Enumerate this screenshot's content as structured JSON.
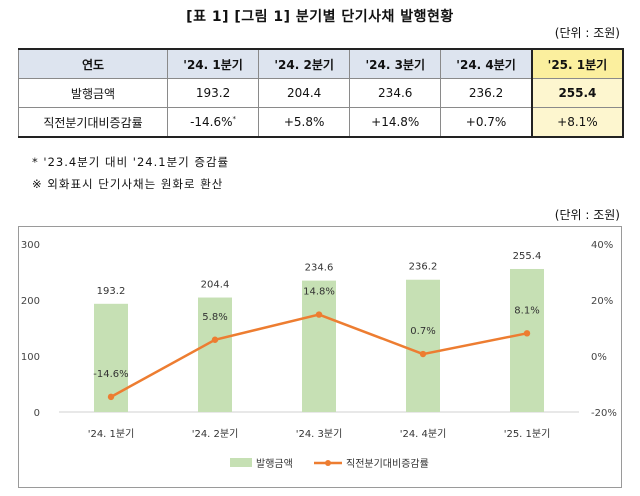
{
  "title": "[표 1] [그림 1] 분기별 단기사채 발행현황",
  "unit_label": "(단위 : 조원)",
  "table": {
    "header": [
      "연도",
      "'24. 1분기",
      "'24. 2분기",
      "'24. 3분기",
      "'24. 4분기",
      "'25. 1분기"
    ],
    "rows": [
      {
        "label": "발행금액",
        "cells": [
          "193.2",
          "204.4",
          "234.6",
          "236.2",
          "255.4"
        ]
      },
      {
        "label": "직전분기대비증감률",
        "cells": [
          "-14.6%",
          "+5.8%",
          "+14.8%",
          "+0.7%",
          "+8.1%"
        ]
      }
    ],
    "footnote_marker": "*"
  },
  "notes": [
    "* '23.4분기 대비 '24.1분기 증감률",
    "※ 외화표시 단기사채는 원화로 환산"
  ],
  "chart_unit_label": "(단위 : 조원)",
  "colors": {
    "bar": "#c6e0b4",
    "line": "#ed7d31",
    "header_bg": "#dde4ef",
    "highlight": "#fbef9e"
  },
  "chart_data": {
    "type": "bar",
    "categories": [
      "'24. 1분기",
      "'24. 2분기",
      "'24. 3분기",
      "'24. 4분기",
      "'25. 1분기"
    ],
    "series": [
      {
        "name": "발행금액",
        "type": "bar",
        "axis": "left",
        "values": [
          193.2,
          204.4,
          234.6,
          236.2,
          255.4
        ],
        "labels": [
          "193.2",
          "204.4",
          "234.6",
          "236.2",
          "255.4"
        ]
      },
      {
        "name": "직전분기대비증감률",
        "type": "line",
        "axis": "right",
        "values": [
          -14.6,
          5.8,
          14.8,
          0.7,
          8.1
        ],
        "labels": [
          "-14.6%",
          "5.8%",
          "14.8%",
          "0.7%",
          "8.1%"
        ]
      }
    ],
    "y_left": {
      "lim": [
        0,
        300
      ],
      "ticks": [
        "0",
        "100",
        "200",
        "300"
      ],
      "tick_values": [
        0,
        100,
        200,
        300
      ]
    },
    "y_right": {
      "lim": [
        -20,
        40
      ],
      "ticks": [
        "-20%",
        "0%",
        "20%",
        "40%"
      ],
      "tick_values": [
        -20,
        0,
        20,
        40
      ]
    },
    "grid": false,
    "legend": "bottom"
  }
}
